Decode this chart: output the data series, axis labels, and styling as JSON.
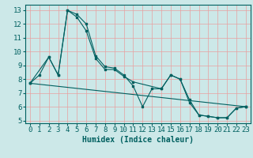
{
  "xlabel": "Humidex (Indice chaleur)",
  "bg_color": "#cce8e8",
  "grid_color": "#e8a0a0",
  "line_color": "#006060",
  "xlim": [
    -0.5,
    23.5
  ],
  "ylim": [
    4.8,
    13.4
  ],
  "yticks": [
    5,
    6,
    7,
    8,
    9,
    10,
    11,
    12,
    13
  ],
  "xticks": [
    0,
    1,
    2,
    3,
    4,
    5,
    6,
    7,
    8,
    9,
    10,
    11,
    12,
    13,
    14,
    15,
    16,
    17,
    18,
    19,
    20,
    21,
    22,
    23
  ],
  "xtick_labels": [
    "0",
    "1",
    "2",
    "3",
    "4",
    "5",
    "6",
    "7",
    "8",
    "9",
    "10",
    "11",
    "12",
    "13",
    "14",
    "15",
    "16",
    "17",
    "18",
    "19",
    "20",
    "21",
    "22",
    "23"
  ],
  "line1_x": [
    0,
    1,
    2,
    3,
    4,
    5,
    6,
    7,
    8,
    9,
    10,
    11,
    12,
    13,
    14,
    15,
    16,
    17,
    18,
    19,
    20,
    21,
    22,
    23
  ],
  "line1_y": [
    7.7,
    8.3,
    9.6,
    8.3,
    13.0,
    12.7,
    12.0,
    9.7,
    8.9,
    8.8,
    8.3,
    7.5,
    6.0,
    7.3,
    7.3,
    8.3,
    8.0,
    6.3,
    5.4,
    5.3,
    5.2,
    5.2,
    5.9,
    6.0
  ],
  "line2_x": [
    0,
    2,
    3,
    4,
    5,
    6,
    7,
    8,
    9,
    10,
    11,
    14,
    15,
    16,
    17,
    18,
    19,
    20,
    21,
    22,
    23
  ],
  "line2_y": [
    7.7,
    9.6,
    8.3,
    13.0,
    12.5,
    11.5,
    9.5,
    8.7,
    8.7,
    8.2,
    7.8,
    7.3,
    8.3,
    8.0,
    6.5,
    5.4,
    5.3,
    5.2,
    5.2,
    5.9,
    6.0
  ],
  "line3_x": [
    0,
    23
  ],
  "line3_y": [
    7.7,
    6.0
  ],
  "font_size": 6.5,
  "marker_size": 2.0,
  "line_width": 0.8
}
